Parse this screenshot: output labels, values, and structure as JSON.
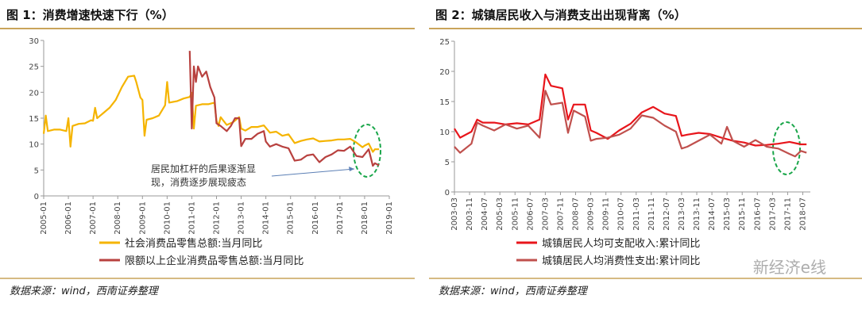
{
  "chart_data": [
    {
      "type": "line",
      "title": "图 1：消费增速快速下行（%）",
      "source": "数据来源：wind，西南证券整理",
      "annotation": [
        "居民加杠杆的后果逐渐显",
        "现，消费逐步展现疲态"
      ],
      "xlim": [
        "2005-01",
        "2019-01"
      ],
      "xticks": [
        "2005-01",
        "2006-01",
        "2007-01",
        "2008-01",
        "2009-01",
        "2010-01",
        "2011-01",
        "2012-01",
        "2013-01",
        "2014-01",
        "2015-01",
        "2016-01",
        "2017-01",
        "2018-01",
        "2019-01"
      ],
      "ylim": [
        0,
        30
      ],
      "yticks": [
        0,
        5,
        10,
        15,
        20,
        25,
        30
      ],
      "grid": false,
      "series": [
        {
          "name": "社会消费品零售总额:当月同比",
          "color": "#f5b400",
          "x": [
            "2005-01",
            "2005-02",
            "2005-03",
            "2005-06",
            "2005-09",
            "2005-12",
            "2006-01",
            "2006-02",
            "2006-03",
            "2006-06",
            "2006-09",
            "2006-12",
            "2007-01",
            "2007-02",
            "2007-03",
            "2007-06",
            "2007-09",
            "2007-12",
            "2008-03",
            "2008-06",
            "2008-09",
            "2008-10",
            "2008-12",
            "2009-01",
            "2009-02",
            "2009-03",
            "2009-06",
            "2009-09",
            "2009-12",
            "2010-01",
            "2010-02",
            "2010-06",
            "2010-09",
            "2010-12",
            "2011-01",
            "2011-02",
            "2011-03",
            "2011-06",
            "2011-09",
            "2011-12",
            "2012-01",
            "2012-02",
            "2012-03",
            "2012-06",
            "2012-09",
            "2012-12",
            "2013-01",
            "2013-03",
            "2013-06",
            "2013-09",
            "2013-12",
            "2014-03",
            "2014-06",
            "2014-09",
            "2014-12",
            "2015-03",
            "2015-06",
            "2015-09",
            "2015-12",
            "2016-03",
            "2016-06",
            "2016-09",
            "2016-12",
            "2017-03",
            "2017-06",
            "2017-09",
            "2017-12",
            "2018-01",
            "2018-03",
            "2018-05",
            "2018-06",
            "2018-08"
          ],
          "values": [
            12,
            15.5,
            12.5,
            12.8,
            12.8,
            12.5,
            15,
            9.5,
            13.5,
            13.9,
            14,
            14.6,
            14.5,
            17,
            15,
            16,
            17,
            18.5,
            21,
            23,
            23.2,
            22,
            19,
            18.5,
            11.6,
            14.7,
            15,
            15.5,
            17.5,
            22,
            18,
            18.3,
            18.8,
            19.1,
            19.9,
            13,
            17.4,
            17.7,
            17.7,
            18,
            14.5,
            13.5,
            15.2,
            13.7,
            14.2,
            15.2,
            13,
            12.6,
            13.3,
            13.3,
            13.6,
            12.2,
            12.4,
            11.6,
            11.9,
            10.2,
            10.6,
            10.9,
            11.1,
            10.5,
            10.6,
            10.7,
            10.9,
            10.9,
            11,
            10.3,
            9.4,
            9.7,
            10.1,
            8.5,
            9,
            9
          ]
        },
        {
          "name": "限额以上企业消费品零售总额:当月同比",
          "color": "#b8413f",
          "x": [
            "2010-12",
            "2011-01",
            "2011-02",
            "2011-03",
            "2011-04",
            "2011-06",
            "2011-08",
            "2011-10",
            "2011-12",
            "2012-01",
            "2012-03",
            "2012-06",
            "2012-08",
            "2012-10",
            "2012-12",
            "2013-01",
            "2013-03",
            "2013-06",
            "2013-09",
            "2013-12",
            "2014-01",
            "2014-03",
            "2014-06",
            "2014-09",
            "2014-12",
            "2015-03",
            "2015-06",
            "2015-09",
            "2015-12",
            "2016-03",
            "2016-06",
            "2016-09",
            "2016-12",
            "2017-03",
            "2017-06",
            "2017-09",
            "2017-12",
            "2018-03",
            "2018-05",
            "2018-06",
            "2018-08"
          ],
          "values": [
            28,
            13,
            25,
            22,
            25,
            23,
            24,
            21,
            19,
            14,
            13.5,
            12.5,
            13.5,
            15,
            15,
            9.6,
            11,
            11,
            12,
            12.5,
            10.5,
            9.5,
            10,
            9.5,
            9.2,
            6.8,
            7,
            7.8,
            8,
            6.5,
            7.5,
            8,
            8.8,
            8.7,
            9.5,
            7.7,
            7.5,
            9,
            5.8,
            6.3,
            5.9
          ]
        }
      ]
    },
    {
      "type": "line",
      "title": "图 2：城镇居民收入与消费支出出现背离（%）",
      "source": "数据来源：wind，西南证券整理",
      "xlim": [
        "2003-03",
        "2018-11"
      ],
      "xticks": [
        "2003-03",
        "2003-11",
        "2004-07",
        "2005-03",
        "2005-11",
        "2006-07",
        "2007-03",
        "2007-11",
        "2008-07",
        "2009-03",
        "2009-11",
        "2010-07",
        "2011-03",
        "2011-11",
        "2012-07",
        "2013-03",
        "2013-11",
        "2014-07",
        "2015-03",
        "2015-11",
        "2016-07",
        "2017-03",
        "2017-11",
        "2018-07"
      ],
      "ylim": [
        0,
        25
      ],
      "yticks": [
        0,
        5,
        10,
        15,
        20,
        25
      ],
      "grid": false,
      "series": [
        {
          "name": "城镇居民人均可支配收入:累计同比",
          "color": "#e8151b",
          "x": [
            "2003-03",
            "2003-06",
            "2003-12",
            "2004-03",
            "2004-06",
            "2004-12",
            "2005-06",
            "2005-12",
            "2006-06",
            "2006-12",
            "2007-03",
            "2007-06",
            "2007-12",
            "2008-03",
            "2008-06",
            "2008-12",
            "2009-03",
            "2009-06",
            "2009-12",
            "2010-06",
            "2010-12",
            "2011-06",
            "2011-12",
            "2012-06",
            "2012-12",
            "2013-03",
            "2013-06",
            "2013-12",
            "2014-06",
            "2014-12",
            "2015-06",
            "2015-12",
            "2016-06",
            "2016-12",
            "2017-06",
            "2017-12",
            "2018-06",
            "2018-09"
          ],
          "values": [
            10.5,
            9,
            10,
            12,
            11.5,
            11.5,
            11.2,
            11.4,
            11.2,
            12,
            19.5,
            17.6,
            17.2,
            12,
            14.5,
            14.5,
            10.2,
            9.8,
            8.8,
            10.2,
            11.3,
            13.2,
            14.1,
            13,
            12.6,
            9.3,
            9.5,
            9.8,
            9.6,
            9,
            8.5,
            8.2,
            7.7,
            7.8,
            8,
            8.3,
            7.9,
            7.9
          ]
        },
        {
          "name": "城镇居民人均消费性支出:累计同比",
          "color": "#c0504d",
          "x": [
            "2003-03",
            "2003-06",
            "2003-12",
            "2004-03",
            "2004-06",
            "2004-12",
            "2005-06",
            "2005-12",
            "2006-06",
            "2006-12",
            "2007-03",
            "2007-06",
            "2007-12",
            "2008-03",
            "2008-06",
            "2008-12",
            "2009-03",
            "2009-06",
            "2009-12",
            "2010-06",
            "2010-12",
            "2011-06",
            "2011-12",
            "2012-06",
            "2012-12",
            "2013-03",
            "2013-06",
            "2013-12",
            "2014-06",
            "2014-12",
            "2015-03",
            "2015-06",
            "2015-12",
            "2016-06",
            "2016-12",
            "2017-06",
            "2017-12",
            "2018-03",
            "2018-06",
            "2018-09"
          ],
          "values": [
            7.5,
            6.5,
            8,
            11.5,
            11,
            10.2,
            11.2,
            10.5,
            11,
            9,
            16.8,
            14.5,
            14.8,
            9.8,
            13.5,
            12.5,
            8.5,
            8.8,
            9,
            9.5,
            10.5,
            12.7,
            12.3,
            11,
            10,
            7.2,
            7.5,
            8.5,
            9.5,
            8,
            10.8,
            8.5,
            7.5,
            8.6,
            7.5,
            7.2,
            6.3,
            5.9,
            6.8,
            6.5
          ]
        }
      ]
    }
  ],
  "watermark": "新经济e线"
}
